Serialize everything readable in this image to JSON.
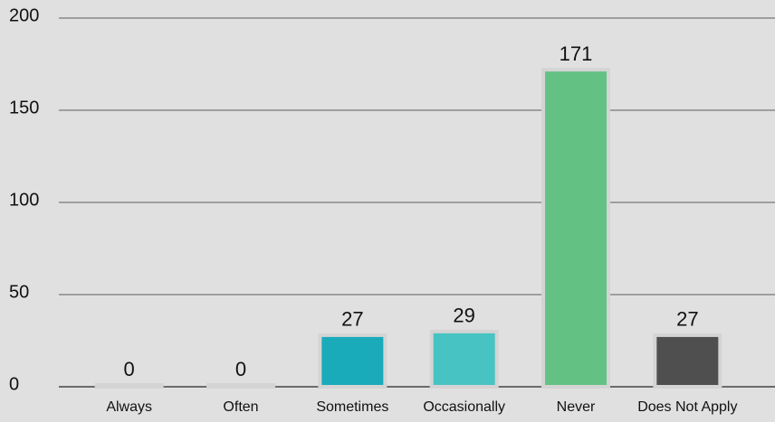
{
  "chart_data": {
    "type": "bar",
    "categories": [
      "Always",
      "Often",
      "Sometimes",
      "Occasionally",
      "Never",
      "Does Not Apply"
    ],
    "values": [
      0,
      0,
      27,
      29,
      171,
      27
    ],
    "colors": [
      "#d2d2d2",
      "#d2d2d2",
      "#1aabbb",
      "#47c3c3",
      "#63c283",
      "#4f4f4f"
    ],
    "ylim": [
      0,
      200
    ],
    "yticks": [
      0,
      50,
      100,
      150,
      200
    ],
    "grid": true
  }
}
